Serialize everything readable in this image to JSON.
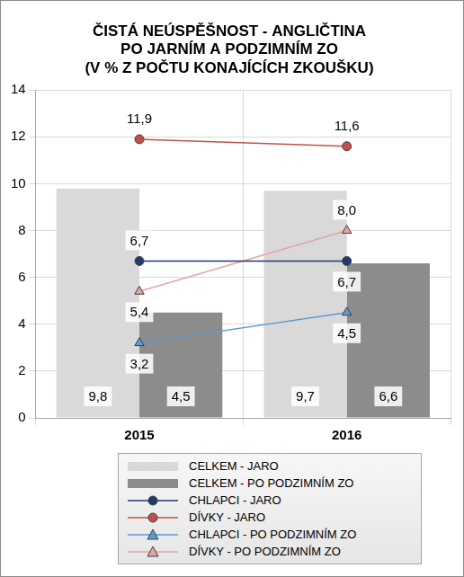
{
  "chart_data": {
    "type": "bar",
    "title": [
      "ČISTÁ NEÚSPĚŠNOST - ANGLIČTINA",
      "PO JARNÍM A PODZIMNÍM ZO",
      "(V % Z POČTU KONAJÍCÍCH ZKOUŠKU)"
    ],
    "categories": [
      "2015",
      "2016"
    ],
    "series": [
      {
        "name": "CELKEM - JARO",
        "type": "bar",
        "color": "#d9d9d9",
        "values": [
          9.8,
          9.7
        ],
        "value_labels": [
          "9,8",
          "9,7"
        ]
      },
      {
        "name": "CELKEM - PO PODZIMNÍM ZO",
        "type": "bar",
        "color": "#8c8c8c",
        "values": [
          4.5,
          6.6
        ],
        "value_labels": [
          "4,5",
          "6,6"
        ]
      },
      {
        "name": "CHLAPCI - JARO",
        "type": "line",
        "color": "#1f3a6e",
        "marker": "circle",
        "values": [
          6.7,
          6.7
        ],
        "value_labels": [
          "6,7",
          "6,7"
        ]
      },
      {
        "name": "DÍVKY - JARO",
        "type": "line",
        "color": "#c0504d",
        "marker": "circle",
        "values": [
          11.9,
          11.6
        ],
        "value_labels": [
          "11,9",
          "11,6"
        ]
      },
      {
        "name": "CHLAPCI - PO PODZIMNÍM ZO",
        "type": "line",
        "color": "#5b9bd5",
        "marker": "triangle",
        "values": [
          3.2,
          4.5
        ],
        "value_labels": [
          "3,2",
          "4,5"
        ]
      },
      {
        "name": "DÍVKY - PO PODZIMNÍM ZO",
        "type": "line",
        "color": "#e6a3a3",
        "marker": "triangle",
        "values": [
          5.4,
          8.0
        ],
        "value_labels": [
          "5,4",
          "8,0"
        ]
      }
    ],
    "ylim": [
      0,
      14
    ],
    "yticks": [
      0,
      2,
      4,
      6,
      8,
      10,
      12,
      14
    ],
    "grid": true,
    "data_labels": true,
    "legend": "bottom"
  }
}
